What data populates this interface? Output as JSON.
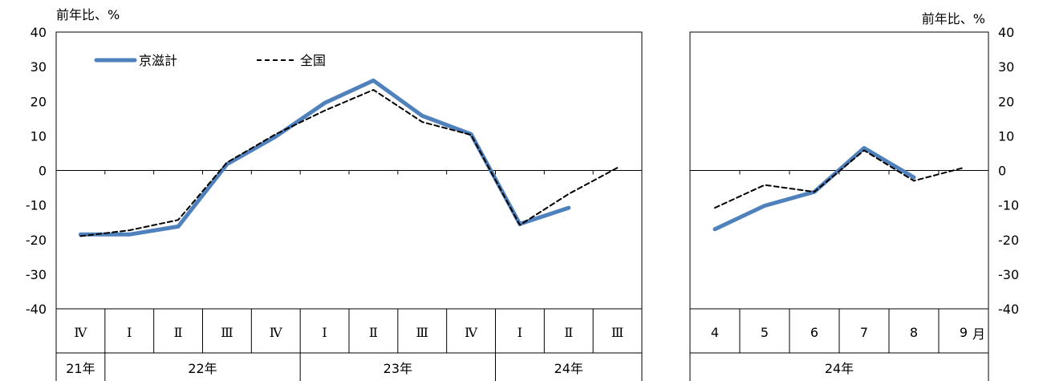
{
  "chart_data": [
    {
      "type": "line",
      "unit_label": "前年比、%",
      "ylim": [
        -40,
        40
      ],
      "yticks": [
        40,
        30,
        20,
        10,
        0,
        -10,
        -20,
        -30,
        -40
      ],
      "categories": [
        "Ⅳ",
        "Ⅰ",
        "Ⅱ",
        "Ⅲ",
        "Ⅳ",
        "Ⅰ",
        "Ⅱ",
        "Ⅲ",
        "Ⅳ",
        "Ⅰ",
        "Ⅱ",
        "Ⅲ"
      ],
      "year_groups": [
        {
          "label": "21年",
          "span": 1
        },
        {
          "label": "22年",
          "span": 4
        },
        {
          "label": "23年",
          "span": 4
        },
        {
          "label": "24年",
          "span": 3
        }
      ],
      "series": [
        {
          "name": "京滋計",
          "color": "#4F81BD",
          "style": "solid",
          "values": [
            -18.5,
            -18.5,
            -16.2,
            1.8,
            9.8,
            19.5,
            26.0,
            15.8,
            10.5,
            -15.5,
            -10.8,
            null
          ]
        },
        {
          "name": "全国",
          "color": "#000000",
          "style": "dashed",
          "values": [
            -19.0,
            -17.3,
            -14.3,
            2.3,
            10.5,
            17.3,
            23.3,
            14.0,
            10.3,
            -15.8,
            -6.8,
            0.8
          ]
        }
      ]
    },
    {
      "type": "line",
      "unit_label": "前年比、%",
      "ylim": [
        -40,
        40
      ],
      "yticks": [
        40,
        30,
        20,
        10,
        0,
        -10,
        -20,
        -30,
        -40
      ],
      "categories": [
        "4",
        "5",
        "6",
        "7",
        "8",
        "9"
      ],
      "month_suffix": "月",
      "year_label": "24年",
      "series": [
        {
          "name": "京滋計",
          "color": "#4F81BD",
          "style": "solid",
          "values": [
            -17.0,
            -10.2,
            -6.2,
            6.5,
            -2.0,
            null
          ]
        },
        {
          "name": "全国",
          "color": "#000000",
          "style": "dashed",
          "values": [
            -10.8,
            -4.2,
            -6.2,
            5.8,
            -3.0,
            0.8
          ]
        }
      ]
    }
  ]
}
